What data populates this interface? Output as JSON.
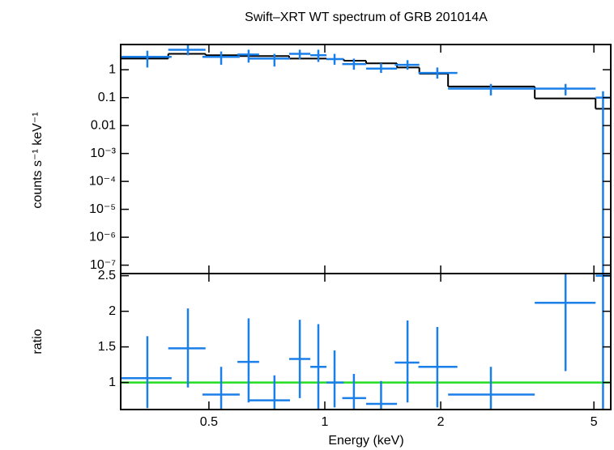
{
  "chart_data": [
    {
      "type": "errorbar",
      "title": "Swift–XRT WT spectrum of GRB 201014A",
      "y_label": "counts s⁻¹ keV⁻¹",
      "log_x": true,
      "log_y": true,
      "xlim": [
        0.295,
        5.53
      ],
      "ylim": [
        5e-08,
        8
      ],
      "yticks": [
        1,
        0.1,
        0.01,
        {
          "value": 0.001,
          "label": "10⁻³"
        },
        {
          "value": 0.0001,
          "label": "10⁻⁴"
        },
        {
          "value": 1e-05,
          "label": "10⁻⁵"
        },
        {
          "value": 1e-06,
          "label": "10⁻⁶"
        },
        {
          "value": 1e-07,
          "label": "10⁻⁷"
        }
      ],
      "series": [
        {
          "color": "#1a7fe8",
          "x": [
            0.346,
            0.441,
            0.538,
            0.634,
            0.74,
            0.861,
            0.962,
            1.06,
            1.19,
            1.4,
            1.64,
            1.96,
            2.7,
            4.22,
            5.28
          ],
          "x_lo": [
            0.295,
            0.392,
            0.481,
            0.593,
            0.631,
            0.808,
            0.917,
            1.01,
            1.11,
            1.28,
            1.52,
            1.75,
            2.09,
            3.51,
            5.05
          ],
          "x_hi": [
            0.4,
            0.49,
            0.601,
            0.675,
            0.812,
            0.917,
            1.01,
            1.12,
            1.28,
            1.54,
            1.76,
            2.21,
            3.51,
            5.05,
            5.53
          ],
          "values": [
            2.9,
            5.2,
            2.9,
            3.5,
            2.5,
            3.7,
            3.3,
            2.4,
            1.6,
            1.1,
            1.5,
            0.77,
            0.21,
            0.21,
            0.1
          ],
          "y_lo": [
            1.2,
            3.3,
            1.5,
            1.8,
            1.3,
            2.4,
            1.9,
            1.5,
            1,
            0.77,
            1,
            0.48,
            0.12,
            0.12,
            5e-08
          ],
          "y_hi": [
            4.8,
            7.7,
            4.5,
            5.2,
            3.7,
            5.2,
            5.2,
            3.7,
            2.5,
            1.7,
            2.2,
            1.2,
            0.31,
            0.31,
            0.17
          ]
        }
      ],
      "model": {
        "color": "#000000",
        "edges": [
          0.295,
          0.392,
          0.49,
          0.601,
          0.808,
          1.01,
          1.12,
          1.28,
          1.54,
          1.76,
          2.09,
          3.51,
          5.05,
          5.53
        ],
        "values": [
          2.5,
          3.7,
          3.3,
          3.1,
          2.5,
          2.4,
          2.1,
          1.7,
          1.2,
          0.72,
          0.25,
          0.094,
          0.04
        ]
      }
    },
    {
      "type": "errorbar",
      "x_label": "Energy (keV)",
      "y_label": "ratio",
      "log_x": true,
      "xlim": [
        0.295,
        5.53
      ],
      "ylim": [
        0.62,
        2.53
      ],
      "xticks": [
        0.5,
        1,
        2,
        5
      ],
      "yticks": [
        1,
        1.5,
        2,
        2.5
      ],
      "series": [
        {
          "color": "#1a7fe8",
          "x": [
            0.346,
            0.441,
            0.538,
            0.634,
            0.74,
            0.861,
            0.962,
            1.06,
            1.19,
            1.4,
            1.64,
            1.96,
            2.7,
            4.22,
            5.28
          ],
          "x_lo": [
            0.295,
            0.392,
            0.481,
            0.593,
            0.631,
            0.808,
            0.917,
            1.01,
            1.11,
            1.28,
            1.52,
            1.75,
            2.09,
            3.51,
            5.05
          ],
          "x_hi": [
            0.4,
            0.49,
            0.601,
            0.675,
            0.812,
            0.917,
            1.01,
            1.12,
            1.28,
            1.54,
            1.76,
            2.21,
            3.51,
            5.05,
            5.53
          ],
          "values": [
            1.06,
            1.48,
            0.83,
            1.29,
            0.75,
            1.33,
            1.22,
            1.0,
            0.78,
            0.7,
            1.28,
            1.22,
            0.83,
            2.12,
            2.5
          ],
          "y_lo": [
            0.64,
            0.93,
            0.6,
            0.72,
            0.6,
            0.78,
            0.6,
            0.65,
            0.6,
            0.6,
            0.72,
            0.65,
            0.6,
            1.16,
            0.6
          ],
          "y_hi": [
            1.65,
            2.04,
            1.22,
            1.9,
            1.1,
            1.88,
            1.82,
            1.45,
            1.12,
            1.02,
            1.87,
            1.78,
            1.22,
            2.53,
            2.53
          ]
        }
      ],
      "reference_line": {
        "value": 1,
        "color": "#22dd22"
      }
    }
  ]
}
